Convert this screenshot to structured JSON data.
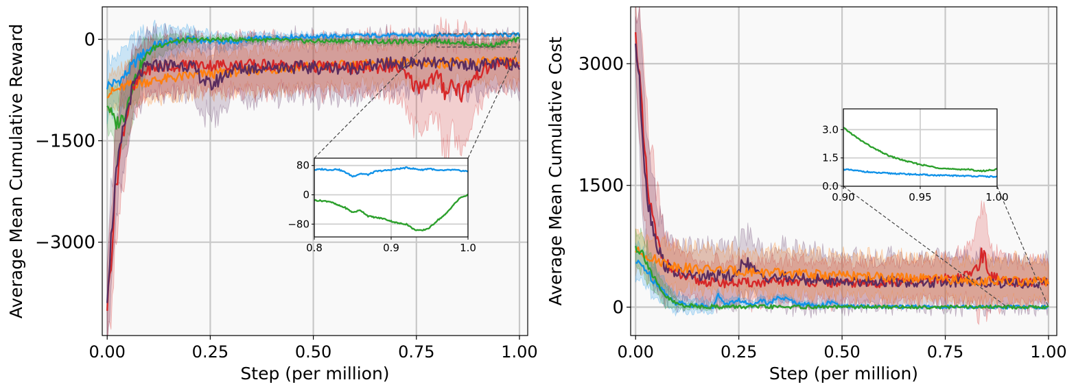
{
  "chart_data": [
    {
      "type": "line",
      "xlabel": "Step (per million)",
      "ylabel": "Average Mean Cumulative Reward",
      "xlim": [
        -0.012,
        1.02
      ],
      "ylim": [
        -4380,
        480
      ],
      "xticks": [
        "0.00",
        "0.25",
        "0.50",
        "0.75",
        "1.00"
      ],
      "yticks": [
        "0",
        "−1500",
        "−3000"
      ],
      "grid": true,
      "series": [
        {
          "color": "#1192e8",
          "x": [
            0,
            0.02,
            0.04,
            0.06,
            0.08,
            0.1,
            0.12,
            0.15,
            0.2,
            0.25,
            0.3,
            0.35,
            0.4,
            0.45,
            0.5,
            0.6,
            0.7,
            0.8,
            0.9,
            1.0
          ],
          "y": [
            -680,
            -650,
            -560,
            -400,
            -250,
            -150,
            -80,
            -40,
            0,
            -20,
            -50,
            10,
            20,
            40,
            40,
            55,
            60,
            70,
            65,
            65
          ],
          "band": [
            400,
            400,
            380,
            350,
            320,
            280,
            240,
            200,
            150,
            120,
            100,
            80,
            60,
            50,
            40,
            30,
            25,
            20,
            20,
            20
          ]
        },
        {
          "color": "#ff7f0e",
          "x": [
            0,
            0.02,
            0.05,
            0.1,
            0.15,
            0.2,
            0.3,
            0.4,
            0.5,
            0.6,
            0.7,
            0.8,
            0.9,
            1.0
          ],
          "y": [
            -800,
            -760,
            -680,
            -620,
            -580,
            -540,
            -480,
            -440,
            -400,
            -380,
            -360,
            -350,
            -340,
            -340
          ],
          "band": [
            250,
            260,
            280,
            300,
            300,
            300,
            300,
            300,
            300,
            300,
            300,
            300,
            300,
            300
          ]
        },
        {
          "color": "#2ca02c",
          "x": [
            0,
            0.02,
            0.04,
            0.06,
            0.08,
            0.1,
            0.12,
            0.15,
            0.2,
            0.3,
            0.4,
            0.5,
            0.6,
            0.7,
            0.8,
            0.85,
            0.9,
            0.93,
            0.96,
            1.0
          ],
          "y": [
            -950,
            -1250,
            -1150,
            -700,
            -400,
            -200,
            -100,
            -40,
            -10,
            0,
            -10,
            -30,
            -20,
            -40,
            -20,
            -50,
            -80,
            -90,
            -50,
            0
          ],
          "band": [
            300,
            500,
            500,
            400,
            300,
            200,
            150,
            100,
            60,
            40,
            40,
            40,
            40,
            40,
            40,
            40,
            40,
            40,
            40,
            40
          ]
        },
        {
          "color": "#d62728",
          "x": [
            0,
            0.01,
            0.02,
            0.04,
            0.06,
            0.08,
            0.1,
            0.15,
            0.2,
            0.3,
            0.4,
            0.5,
            0.6,
            0.7,
            0.75,
            0.8,
            0.82,
            0.84,
            0.86,
            0.9,
            0.95,
            1.0
          ],
          "y": [
            -3950,
            -3200,
            -2200,
            -1300,
            -800,
            -550,
            -440,
            -400,
            -380,
            -380,
            -380,
            -400,
            -420,
            -400,
            -700,
            -550,
            -750,
            -650,
            -800,
            -500,
            -350,
            -380
          ],
          "band": [
            500,
            900,
            900,
            700,
            500,
            400,
            350,
            350,
            350,
            380,
            380,
            380,
            400,
            420,
            600,
            550,
            900,
            700,
            800,
            450,
            350,
            350
          ]
        },
        {
          "color": "#5a2d5f",
          "x": [
            0,
            0.01,
            0.02,
            0.04,
            0.06,
            0.08,
            0.1,
            0.15,
            0.2,
            0.25,
            0.3,
            0.4,
            0.5,
            0.6,
            0.7,
            0.8,
            0.9,
            1.0
          ],
          "y": [
            -3800,
            -2900,
            -2100,
            -1300,
            -750,
            -500,
            -400,
            -380,
            -380,
            -700,
            -450,
            -400,
            -420,
            -420,
            -350,
            -360,
            -380,
            -360
          ],
          "band": [
            500,
            700,
            700,
            600,
            500,
            450,
            420,
            420,
            420,
            500,
            450,
            420,
            420,
            420,
            400,
            400,
            400,
            380
          ]
        }
      ],
      "inset": {
        "xlim": [
          0.8,
          1.0
        ],
        "ylim": [
          -115,
          100
        ],
        "xticks": [
          "0.8",
          "0.9",
          "1.0"
        ],
        "yticks": [
          "80",
          "0",
          "−80"
        ],
        "series": [
          {
            "color": "#1192e8",
            "x": [
              0.8,
              0.81,
              0.82,
              0.83,
              0.84,
              0.85,
              0.86,
              0.87,
              0.88,
              0.9,
              0.92,
              0.94,
              0.95,
              0.96,
              0.98,
              1.0
            ],
            "y": [
              68,
              70,
              68,
              70,
              62,
              50,
              58,
              55,
              64,
              68,
              74,
              68,
              72,
              66,
              68,
              64
            ],
            "band": [
              0
            ]
          },
          {
            "color": "#2ca02c",
            "x": [
              0.8,
              0.82,
              0.83,
              0.84,
              0.85,
              0.86,
              0.87,
              0.88,
              0.89,
              0.9,
              0.91,
              0.92,
              0.93,
              0.94,
              0.95,
              0.96,
              0.97,
              0.98,
              0.99,
              1.0
            ],
            "y": [
              -15,
              -18,
              -28,
              -35,
              -48,
              -42,
              -58,
              -62,
              -65,
              -72,
              -78,
              -80,
              -95,
              -98,
              -90,
              -70,
              -55,
              -30,
              -8,
              0
            ],
            "band": [
              0
            ]
          }
        ]
      }
    },
    {
      "type": "line",
      "xlabel": "Step (per million)",
      "ylabel": "Average Mean Cumulative Cost",
      "xlim": [
        -0.012,
        1.02
      ],
      "ylim": [
        -350,
        3700
      ],
      "xticks": [
        "0.00",
        "0.25",
        "0.50",
        "0.75",
        "1.00"
      ],
      "yticks": [
        "0",
        "1500",
        "3000"
      ],
      "grid": true,
      "series": [
        {
          "color": "#d62728",
          "x": [
            0,
            0.01,
            0.02,
            0.03,
            0.05,
            0.07,
            0.1,
            0.15,
            0.2,
            0.3,
            0.4,
            0.5,
            0.6,
            0.7,
            0.8,
            0.82,
            0.84,
            0.86,
            0.9,
            1.0
          ],
          "y": [
            3350,
            2800,
            2000,
            1400,
            850,
            550,
            400,
            320,
            300,
            300,
            320,
            290,
            300,
            320,
            380,
            450,
            650,
            380,
            300,
            300
          ],
          "band": [
            300,
            800,
            900,
            800,
            600,
            400,
            300,
            250,
            250,
            250,
            250,
            250,
            250,
            250,
            300,
            400,
            700,
            350,
            250,
            250
          ]
        },
        {
          "color": "#5a2d5f",
          "x": [
            0,
            0.01,
            0.02,
            0.03,
            0.05,
            0.07,
            0.1,
            0.15,
            0.2,
            0.25,
            0.26,
            0.3,
            0.4,
            0.5,
            0.6,
            0.7,
            0.8,
            0.9,
            1.0
          ],
          "y": [
            3250,
            2700,
            1900,
            1300,
            800,
            520,
            420,
            380,
            380,
            400,
            600,
            380,
            350,
            320,
            320,
            300,
            310,
            300,
            290
          ],
          "band": [
            300,
            700,
            800,
            700,
            500,
            400,
            350,
            350,
            350,
            350,
            400,
            350,
            350,
            300,
            300,
            300,
            300,
            300,
            300
          ]
        },
        {
          "color": "#ff7f0e",
          "x": [
            0,
            0.02,
            0.05,
            0.1,
            0.15,
            0.2,
            0.3,
            0.4,
            0.5,
            0.6,
            0.7,
            0.8,
            0.9,
            1.0
          ],
          "y": [
            700,
            650,
            580,
            500,
            470,
            460,
            430,
            410,
            390,
            370,
            350,
            330,
            320,
            310
          ],
          "band": [
            250,
            250,
            250,
            250,
            250,
            250,
            250,
            250,
            250,
            250,
            250,
            250,
            250,
            250
          ]
        },
        {
          "color": "#1192e8",
          "x": [
            0,
            0.02,
            0.04,
            0.06,
            0.08,
            0.1,
            0.15,
            0.19,
            0.2,
            0.22,
            0.25,
            0.28,
            0.3,
            0.32,
            0.35,
            0.4,
            0.45,
            0.47,
            0.5,
            0.6,
            0.7,
            0.8,
            1.0
          ],
          "y": [
            550,
            500,
            350,
            250,
            120,
            50,
            20,
            10,
            150,
            30,
            90,
            20,
            100,
            50,
            120,
            40,
            20,
            60,
            8,
            5,
            3,
            2,
            1
          ],
          "band": [
            200,
            200,
            180,
            150,
            120,
            100,
            80,
            60,
            60,
            50,
            50,
            50,
            50,
            40,
            40,
            30,
            30,
            30,
            20,
            10,
            5,
            5,
            5
          ]
        },
        {
          "color": "#2ca02c",
          "x": [
            0,
            0.02,
            0.04,
            0.06,
            0.08,
            0.1,
            0.12,
            0.15,
            0.2,
            0.3,
            0.5,
            1.0
          ],
          "y": [
            740,
            650,
            400,
            200,
            100,
            40,
            20,
            10,
            5,
            3,
            2,
            1
          ],
          "band": [
            250,
            250,
            200,
            150,
            100,
            60,
            40,
            30,
            20,
            10,
            5,
            5
          ]
        }
      ],
      "inset": {
        "xlim": [
          0.9,
          1.0
        ],
        "ylim": [
          0,
          4.1
        ],
        "xticks": [
          "0.90",
          "0.95",
          "1.00"
        ],
        "yticks": [
          "0.0",
          "1.5",
          "3.0"
        ],
        "series": [
          {
            "color": "#2ca02c",
            "x": [
              0.9,
              0.91,
              0.92,
              0.93,
              0.94,
              0.95,
              0.96,
              0.97,
              0.98,
              0.99,
              1.0
            ],
            "y": [
              3.1,
              2.5,
              2.0,
              1.6,
              1.35,
              1.15,
              1.0,
              0.9,
              0.9,
              0.8,
              0.9
            ],
            "band": [
              0
            ]
          },
          {
            "color": "#1192e8",
            "x": [
              0.9,
              0.92,
              0.94,
              0.96,
              0.98,
              1.0
            ],
            "y": [
              0.9,
              0.72,
              0.65,
              0.58,
              0.55,
              0.5
            ],
            "band": [
              0
            ]
          }
        ]
      }
    }
  ]
}
